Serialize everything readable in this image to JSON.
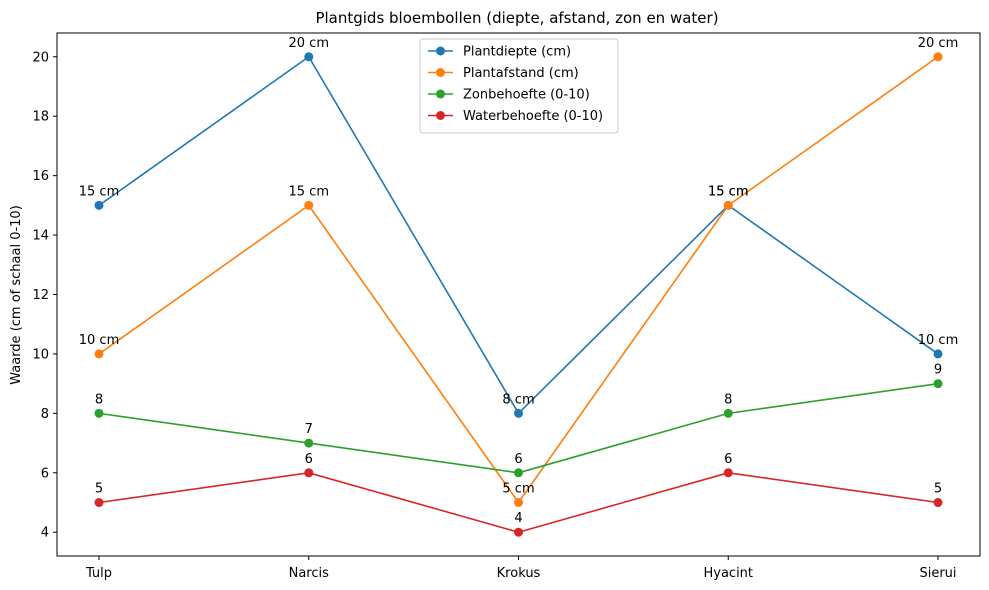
{
  "chart_data": {
    "type": "line",
    "title": "Plantgids bloembollen (diepte, afstand, zon en water)",
    "xlabel": "",
    "ylabel": "Waarde (cm of schaal 0-10)",
    "categories": [
      "Tulp",
      "Narcis",
      "Krokus",
      "Hyacint",
      "Sierui"
    ],
    "ylim": [
      3.2,
      20.8
    ],
    "yticks": [
      4,
      6,
      8,
      10,
      12,
      14,
      16,
      18,
      20
    ],
    "grid": false,
    "legend_position": "top-center",
    "series": [
      {
        "name": "Plantdiepte (cm)",
        "color": "#1f77b4",
        "values": [
          15,
          20,
          8,
          15,
          10
        ],
        "labels": [
          "15 cm",
          "20 cm",
          "8 cm",
          "15 cm",
          "10 cm"
        ]
      },
      {
        "name": "Plantafstand (cm)",
        "color": "#ff7f0e",
        "values": [
          10,
          15,
          5,
          15,
          20
        ],
        "labels": [
          "10 cm",
          "15 cm",
          "5 cm",
          "15 cm",
          "20 cm"
        ]
      },
      {
        "name": "Zonbehoefte (0-10)",
        "color": "#2ca02c",
        "values": [
          8,
          7,
          6,
          8,
          9
        ],
        "labels": [
          "8",
          "7",
          "6",
          "8",
          "9"
        ]
      },
      {
        "name": "Waterbehoefte (0-10)",
        "color": "#d62728",
        "values": [
          5,
          6,
          4,
          6,
          5
        ],
        "labels": [
          "5",
          "6",
          "4",
          "6",
          "5"
        ]
      }
    ]
  }
}
